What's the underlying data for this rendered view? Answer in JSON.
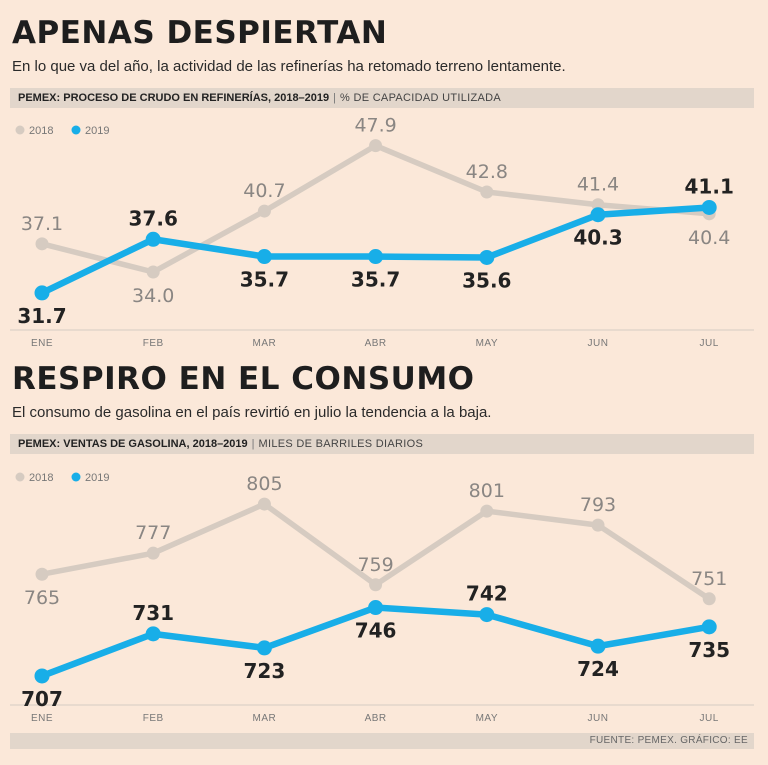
{
  "colors": {
    "c2018": "#d6cbc1",
    "c2019": "#18aee8",
    "grid": "#e2d6cb",
    "bg": "#fbe8d9"
  },
  "charts": [
    {
      "title": "APENAS DESPIERTAN",
      "subtitle": "En lo que va del año, la actividad de las refinerías ha retomado terreno lentamente.",
      "bar_bold": "PEMEX: PROCESO DE CRUDO EN REFINERÍAS, 2018–2019",
      "bar_unit": "% DE CAPACIDAD UTILIZADA"
    },
    {
      "title": "RESPIRO EN EL CONSUMO",
      "subtitle": "El consumo de gasolina en el país revirtió en julio la tendencia a la baja.",
      "bar_bold": "PEMEX: VENTAS DE GASOLINA, 2018–2019",
      "bar_unit": "MILES DE BARRILES DIARIOS"
    }
  ],
  "footer": "FUENTE: PEMEX.  GRÁFICO: EE",
  "chart_data": [
    {
      "type": "line",
      "title": "PEMEX: PROCESO DE CRUDO EN REFINERÍAS, 2018–2019",
      "ylabel": "% DE CAPACIDAD UTILIZADA",
      "categories": [
        "ENE",
        "FEB",
        "MAR",
        "ABR",
        "MAY",
        "JUN",
        "JUL"
      ],
      "series": [
        {
          "name": "2018",
          "values": [
            37.1,
            34.0,
            40.7,
            47.9,
            42.8,
            41.4,
            40.4
          ],
          "labels": [
            "37.1",
            "34.0",
            "40.7",
            "47.9",
            "42.8",
            "41.4",
            "40.4"
          ]
        },
        {
          "name": "2019",
          "values": [
            31.7,
            37.6,
            35.7,
            35.7,
            35.6,
            40.3,
            41.1
          ],
          "labels": [
            "31.7",
            "37.6",
            "35.7",
            "35.7",
            "35.6",
            "40.3",
            "41.1"
          ]
        }
      ],
      "ylim": [
        28.5,
        50.5
      ],
      "legend": "top-left"
    },
    {
      "type": "line",
      "title": "PEMEX: VENTAS DE GASOLINA, 2018–2019",
      "ylabel": "MILES DE BARRILES DIARIOS",
      "categories": [
        "ENE",
        "FEB",
        "MAR",
        "ABR",
        "MAY",
        "JUN",
        "JUL"
      ],
      "series": [
        {
          "name": "2018",
          "values": [
            765,
            777,
            805,
            759,
            801,
            793,
            751
          ],
          "labels": [
            "765",
            "777",
            "805",
            "759",
            "801",
            "793",
            "751"
          ]
        },
        {
          "name": "2019",
          "values": [
            707,
            731,
            723,
            746,
            742,
            724,
            735
          ],
          "labels": [
            "707",
            "731",
            "723",
            "746",
            "742",
            "724",
            "735"
          ]
        }
      ],
      "ylim": [
        695,
        825
      ],
      "legend": "top-left"
    }
  ]
}
